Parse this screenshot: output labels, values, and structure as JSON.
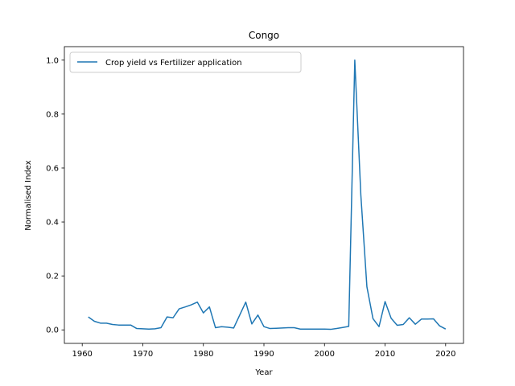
{
  "chart_data": {
    "type": "line",
    "title": "Congo",
    "xlabel": "Year",
    "ylabel": "Normalised Index",
    "xlim": [
      1957.05,
      2022.95
    ],
    "ylim": [
      -0.05,
      1.05
    ],
    "xticks": [
      1960,
      1970,
      1980,
      1990,
      2000,
      2010,
      2020
    ],
    "yticks": [
      0.0,
      0.2,
      0.4,
      0.6,
      0.8,
      1.0
    ],
    "xtick_labels": [
      "1960",
      "1970",
      "1980",
      "1990",
      "2000",
      "2010",
      "2020"
    ],
    "ytick_labels": [
      "0.0",
      "0.2",
      "0.4",
      "0.6",
      "0.8",
      "1.0"
    ],
    "legend_position": "upper left",
    "grid": false,
    "series": [
      {
        "name": "Crop yield vs Fertilizer application",
        "color": "#1f77b4",
        "x": [
          1961,
          1962,
          1963,
          1964,
          1965,
          1966,
          1967,
          1968,
          1969,
          1970,
          1971,
          1972,
          1973,
          1974,
          1975,
          1976,
          1977,
          1978,
          1979,
          1980,
          1981,
          1982,
          1983,
          1984,
          1985,
          1986,
          1987,
          1988,
          1989,
          1990,
          1991,
          1992,
          1993,
          1994,
          1995,
          1996,
          1997,
          1998,
          1999,
          2000,
          2001,
          2002,
          2003,
          2004,
          2005,
          2006,
          2007,
          2008,
          2009,
          2010,
          2011,
          2012,
          2013,
          2014,
          2015,
          2016,
          2017,
          2018,
          2019,
          2020
        ],
        "y": [
          0.048,
          0.032,
          0.025,
          0.025,
          0.02,
          0.018,
          0.018,
          0.018,
          0.005,
          0.004,
          0.003,
          0.004,
          0.008,
          0.048,
          0.045,
          0.078,
          0.085,
          0.093,
          0.103,
          0.063,
          0.085,
          0.008,
          0.012,
          0.01,
          0.007,
          0.055,
          0.103,
          0.022,
          0.055,
          0.012,
          0.005,
          0.006,
          0.007,
          0.008,
          0.008,
          0.003,
          0.003,
          0.003,
          0.003,
          0.003,
          0.002,
          0.005,
          0.009,
          0.013,
          1.0,
          0.5,
          0.16,
          0.042,
          0.012,
          0.105,
          0.043,
          0.017,
          0.02,
          0.045,
          0.021,
          0.04,
          0.04,
          0.041,
          0.015,
          0.003
        ]
      }
    ]
  }
}
